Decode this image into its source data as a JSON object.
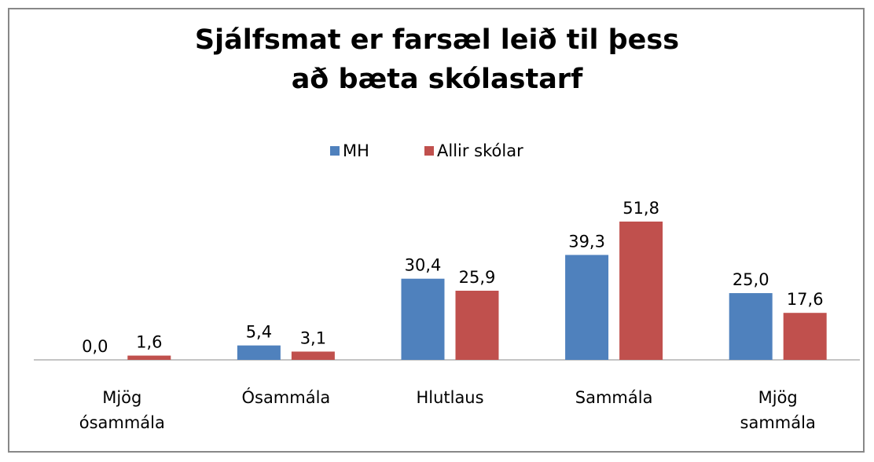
{
  "chart_data": {
    "type": "bar",
    "title": "Sjálfsmat er farsæl leið til þess að bæta skólastarf",
    "categories": [
      "Mjög ósammála",
      "Ósammála",
      "Hlutlaus",
      "Sammála",
      "Mjög sammála"
    ],
    "series": [
      {
        "name": "MH",
        "color": "#4f81bd",
        "values": [
          0.0,
          5.4,
          30.4,
          39.3,
          25.0
        ],
        "value_labels": [
          "0,0",
          "5,4",
          "30,4",
          "39,3",
          "25,0"
        ]
      },
      {
        "name": "Allir skólar",
        "color": "#c0504d",
        "values": [
          1.6,
          3.1,
          25.9,
          51.8,
          17.6
        ],
        "value_labels": [
          "1,6",
          "3,1",
          "25,9",
          "51,8",
          "17,6"
        ]
      }
    ],
    "legend": "top"
  }
}
